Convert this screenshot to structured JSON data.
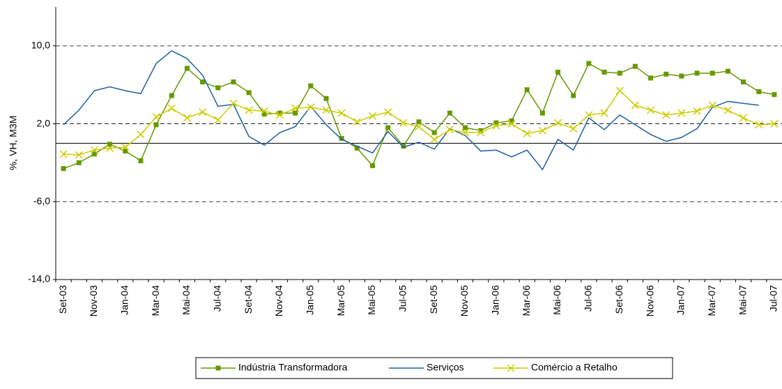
{
  "chart_data": {
    "type": "line",
    "ylabel": "%, VH, M3M",
    "categories": [
      "Set-03",
      null,
      "Nov-03",
      null,
      "Jan-04",
      null,
      "Mar-04",
      null,
      "Mai-04",
      null,
      "Jul-04",
      null,
      "Set-04",
      null,
      "Nov-04",
      null,
      "Jan-05",
      null,
      "Mar-05",
      null,
      "Mai-05",
      null,
      "Jul-05",
      null,
      "Set-05",
      null,
      "Nov-05",
      null,
      "Jan-06",
      null,
      "Mar-06",
      null,
      "Mai-06",
      null,
      "Jul-06",
      null,
      "Set-06",
      null,
      "Nov-06",
      null,
      "Jan-07",
      null,
      "Mar-07",
      null,
      "Mai-07",
      null,
      "Jul-07"
    ],
    "series": [
      {
        "name": "Indústria Transformadora",
        "color": "#669900",
        "marker": "square",
        "values": [
          -2.6,
          -2.0,
          -1.1,
          -0.1,
          -0.8,
          -1.8,
          1.9,
          4.9,
          7.7,
          6.3,
          5.7,
          6.3,
          5.2,
          3.0,
          3.1,
          3.1,
          5.9,
          4.6,
          0.5,
          -0.5,
          -2.3,
          1.6,
          -0.3,
          2.2,
          1.1,
          3.1,
          1.6,
          1.3,
          2.1,
          2.3,
          5.5,
          3.1,
          7.3,
          4.9,
          8.2,
          7.3,
          7.2,
          7.9,
          6.7,
          7.1,
          6.9,
          7.2,
          7.2,
          7.4,
          6.3,
          5.3,
          5.0
        ]
      },
      {
        "name": "Serviços",
        "color": "#1f5fa0",
        "marker": "none",
        "values": [
          1.9,
          3.4,
          5.4,
          5.8,
          5.4,
          5.1,
          8.2,
          9.5,
          8.7,
          7.0,
          3.8,
          4.0,
          0.7,
          -0.2,
          1.1,
          1.7,
          3.8,
          1.9,
          0.4,
          -0.3,
          -1.0,
          1.2,
          -0.4,
          0.1,
          -0.6,
          1.5,
          0.8,
          -0.8,
          -0.7,
          -1.4,
          -0.7,
          -2.7,
          0.4,
          -0.7,
          2.6,
          1.4,
          2.9,
          1.9,
          0.9,
          0.2,
          0.6,
          1.5,
          3.7,
          4.3,
          4.1,
          3.9,
          null
        ]
      },
      {
        "name": "Comércio a Retalho",
        "color": "#cccc00",
        "marker": "x",
        "values": [
          -1.1,
          -1.2,
          -0.7,
          -0.5,
          -0.4,
          0.9,
          2.7,
          3.6,
          2.6,
          3.2,
          2.4,
          4.1,
          3.4,
          3.3,
          2.9,
          3.6,
          3.7,
          3.4,
          3.1,
          2.2,
          2.8,
          3.2,
          2.1,
          1.7,
          0.4,
          1.4,
          1.1,
          1.1,
          1.8,
          2.0,
          1.0,
          1.3,
          2.1,
          1.5,
          2.9,
          3.1,
          5.4,
          3.9,
          3.4,
          2.9,
          3.1,
          3.3,
          3.9,
          3.4,
          2.6,
          1.9,
          2.0
        ]
      }
    ],
    "ylim": [
      -14,
      14
    ],
    "yticks": [
      {
        "value": -14,
        "label": "-14,0"
      },
      {
        "value": -6,
        "label": "-6,0"
      },
      {
        "value": 2,
        "label": "2,0"
      },
      {
        "value": 10,
        "label": "10,0"
      }
    ],
    "grid": true,
    "legend": "bottom"
  }
}
